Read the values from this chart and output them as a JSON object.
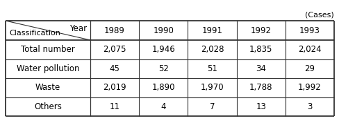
{
  "caption": "(Cases)",
  "col_header_left": "Classification",
  "col_header_year": "Year",
  "years": [
    "1989",
    "1990",
    "1991",
    "1992",
    "1993"
  ],
  "rows": [
    {
      "label": "Total number",
      "values": [
        "2,075",
        "1,946",
        "2,028",
        "1,835",
        "2,024"
      ]
    },
    {
      "label": "Water pollution",
      "values": [
        "45",
        "52",
        "51",
        "34",
        "29"
      ]
    },
    {
      "label": "Waste",
      "values": [
        "2,019",
        "1,890",
        "1,970",
        "1,788",
        "1,992"
      ]
    },
    {
      "label": "Others",
      "values": [
        "11",
        "4",
        "7",
        "13",
        "3"
      ]
    }
  ],
  "bg_color": "#ffffff",
  "line_color": "#333333",
  "text_color": "#000000",
  "font_size": 8.5,
  "caption_font_size": 8
}
